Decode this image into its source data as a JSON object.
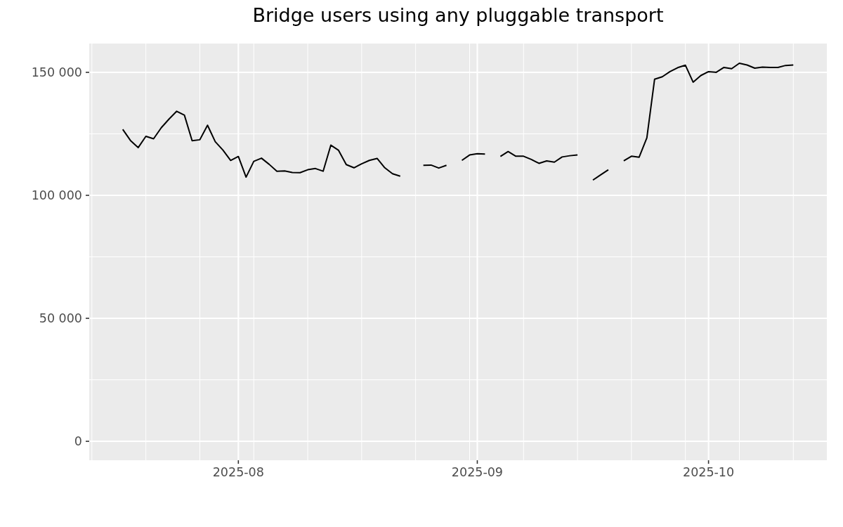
{
  "chart_data": {
    "type": "line",
    "title": "Bridge users using any pluggable transport",
    "x": [
      "2025-07-17",
      "2025-07-18",
      "2025-07-19",
      "2025-07-20",
      "2025-07-21",
      "2025-07-22",
      "2025-07-23",
      "2025-07-24",
      "2025-07-25",
      "2025-07-26",
      "2025-07-27",
      "2025-07-28",
      "2025-07-29",
      "2025-07-30",
      "2025-07-31",
      "2025-08-01",
      "2025-08-02",
      "2025-08-03",
      "2025-08-04",
      "2025-08-05",
      "2025-08-06",
      "2025-08-07",
      "2025-08-08",
      "2025-08-09",
      "2025-08-10",
      "2025-08-11",
      "2025-08-12",
      "2025-08-13",
      "2025-08-14",
      "2025-08-15",
      "2025-08-16",
      "2025-08-17",
      "2025-08-18",
      "2025-08-19",
      "2025-08-20",
      "2025-08-21",
      "2025-08-22",
      "2025-08-23",
      "2025-08-24",
      "2025-08-25",
      "2025-08-26",
      "2025-08-27",
      "2025-08-28",
      "2025-08-29",
      "2025-08-30",
      "2025-08-31",
      "2025-09-01",
      "2025-09-02",
      "2025-09-03",
      "2025-09-04",
      "2025-09-05",
      "2025-09-06",
      "2025-09-07",
      "2025-09-08",
      "2025-09-09",
      "2025-09-10",
      "2025-09-11",
      "2025-09-12",
      "2025-09-13",
      "2025-09-14",
      "2025-09-15",
      "2025-09-16",
      "2025-09-17",
      "2025-09-18",
      "2025-09-19",
      "2025-09-20",
      "2025-09-21",
      "2025-09-22",
      "2025-09-23",
      "2025-09-24",
      "2025-09-25",
      "2025-09-26",
      "2025-09-27",
      "2025-09-28",
      "2025-09-29",
      "2025-09-30",
      "2025-10-01",
      "2025-10-02",
      "2025-10-03",
      "2025-10-04",
      "2025-10-05",
      "2025-10-06",
      "2025-10-07",
      "2025-10-08",
      "2025-10-09",
      "2025-10-10",
      "2025-10-11",
      "2025-10-12"
    ],
    "values": [
      126800,
      122300,
      119400,
      124000,
      123000,
      127500,
      131000,
      134200,
      132600,
      122200,
      122600,
      128500,
      121800,
      118400,
      114200,
      115800,
      107400,
      113800,
      115100,
      112600,
      109800,
      109900,
      109300,
      109200,
      110400,
      110900,
      109800,
      120400,
      118300,
      112500,
      111200,
      112800,
      114200,
      115000,
      111200,
      108800,
      107800,
      null,
      null,
      112200,
      112300,
      111100,
      112200,
      null,
      114200,
      116400,
      116900,
      116800,
      null,
      115800,
      117800,
      115900,
      115900,
      114600,
      113000,
      114000,
      113500,
      115600,
      116100,
      116400,
      null,
      106200,
      108300,
      110400,
      null,
      114000,
      115900,
      115500,
      123400,
      147200,
      148200,
      150300,
      151900,
      152900,
      146000,
      148700,
      150300,
      150000,
      152000,
      151500,
      153700,
      153000,
      151700,
      152100,
      152000,
      152000,
      152800,
      153000
    ],
    "color": "#000000",
    "xlim": [
      "2025-07-12T15:36",
      "2025-10-16T08:24"
    ],
    "xticks": [
      {
        "value": "2025-07-13",
        "label": null
      },
      {
        "value": "2025-07-20",
        "label": null
      },
      {
        "value": "2025-07-27",
        "label": null
      },
      "2025-08",
      {
        "value": "2025-08-03",
        "label": null
      },
      {
        "value": "2025-08-10",
        "label": null
      },
      {
        "value": "2025-08-17",
        "label": null
      },
      {
        "value": "2025-08-24",
        "label": null
      },
      {
        "value": "2025-08-31",
        "label": null
      },
      "2025-09",
      {
        "value": "2025-09-07",
        "label": null
      },
      {
        "value": "2025-09-14",
        "label": null
      },
      {
        "value": "2025-09-21",
        "label": null
      },
      {
        "value": "2025-09-28",
        "label": null
      },
      "2025-10",
      {
        "value": "2025-10-05",
        "label": null
      },
      {
        "value": "2025-10-12",
        "label": null
      }
    ],
    "ylim": [
      -7700,
      161700
    ],
    "yticks": [
      0,
      {
        "value": 25000,
        "label": null
      },
      {
        "value": 50000,
        "label": "50 000"
      },
      {
        "value": 75000,
        "label": null
      },
      {
        "value": 100000,
        "label": "100 000"
      },
      {
        "value": 125000,
        "label": null
      },
      {
        "value": 150000,
        "label": "150 000"
      }
    ],
    "grid": true
  }
}
